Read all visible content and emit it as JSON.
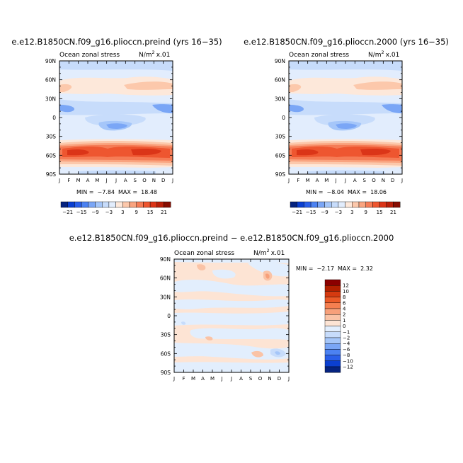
{
  "chart_data": [
    {
      "type": "heatmap",
      "title": "e.e12.B1850CN.f09_g16.plioccn.preind (yrs 16−35)",
      "subtitle_left": "Ocean zonal stress",
      "units_base": "N/m",
      "units_sup": "2",
      "units_suffix": "x.01",
      "x_ticks": [
        "J",
        "F",
        "M",
        "A",
        "M",
        "J",
        "J",
        "A",
        "S",
        "O",
        "N",
        "D",
        "J"
      ],
      "y_ticks": [
        "90N",
        "60N",
        "30N",
        "0",
        "30S",
        "60S",
        "90S"
      ],
      "xlim": [
        0,
        12
      ],
      "ylim": [
        -90,
        90
      ],
      "min_label": "MIN =",
      "min": "−7.84",
      "max_label": "MAX =",
      "max": "18.48",
      "colorbar_labels": [
        "−21",
        "−15",
        "−9",
        "−3",
        "3",
        "9",
        "15",
        "21"
      ]
    },
    {
      "type": "heatmap",
      "title": "e.e12.B1850CN.f09_g16.plioccn.2000 (yrs 16−35)",
      "subtitle_left": "Ocean zonal stress",
      "units_base": "N/m",
      "units_sup": "2",
      "units_suffix": "x.01",
      "x_ticks": [
        "J",
        "F",
        "M",
        "A",
        "M",
        "J",
        "J",
        "A",
        "S",
        "O",
        "N",
        "D",
        "J"
      ],
      "y_ticks": [
        "90N",
        "60N",
        "30N",
        "0",
        "30S",
        "60S",
        "90S"
      ],
      "xlim": [
        0,
        12
      ],
      "ylim": [
        -90,
        90
      ],
      "min_label": "MIN =",
      "min": "−8.04",
      "max_label": "MAX =",
      "max": "18.06",
      "colorbar_labels": [
        "−21",
        "−15",
        "−9",
        "−3",
        "3",
        "9",
        "15",
        "21"
      ]
    },
    {
      "type": "heatmap",
      "title": "e.e12.B1850CN.f09_g16.plioccn.preind − e.e12.B1850CN.f09_g16.plioccn.2000",
      "subtitle_left": "Ocean zonal stress",
      "units_base": "N/m",
      "units_sup": "2",
      "units_suffix": "x.01",
      "x_ticks": [
        "J",
        "F",
        "M",
        "A",
        "M",
        "J",
        "J",
        "A",
        "S",
        "O",
        "N",
        "D",
        "J"
      ],
      "y_ticks": [
        "90N",
        "60N",
        "30N",
        "0",
        "30S",
        "60S",
        "90S"
      ],
      "xlim": [
        0,
        12
      ],
      "ylim": [
        -90,
        90
      ],
      "min_label": "MIN =",
      "min": "−2.17",
      "max_label": "MAX =",
      "max": "2.32",
      "colorbar_labels": [
        "12",
        "10",
        "8",
        "6",
        "4",
        "2",
        "1",
        "0",
        "−1",
        "−2",
        "−4",
        "−6",
        "−8",
        "−10",
        "−12"
      ]
    }
  ],
  "colors": {
    "diverging_16": [
      "#06237f",
      "#0b3fd0",
      "#2a5fe9",
      "#4c82f2",
      "#7aa6f6",
      "#a5c6f9",
      "#c7dcfb",
      "#e2edfd",
      "#fde8da",
      "#fcc8ab",
      "#f9a480",
      "#f57c56",
      "#ee5630",
      "#db3518",
      "#b81f0a",
      "#870d02"
    ],
    "diff_16": [
      "#8b0000",
      "#b22000",
      "#d53a10",
      "#eb5a28",
      "#f57f50",
      "#f7a07a",
      "#fac3a6",
      "#fde4d4",
      "#e2eefd",
      "#c7dcfb",
      "#a5c6f9",
      "#7aa6f6",
      "#4c82f2",
      "#2a5fe9",
      "#0b3fd0",
      "#06237f"
    ]
  }
}
